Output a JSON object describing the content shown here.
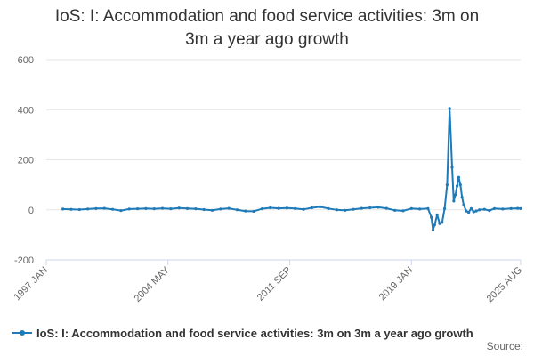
{
  "chart_data": {
    "type": "line",
    "title_line1": "IoS: I: Accommodation and food service activities: 3m on",
    "title_line2": "3m a year ago growth",
    "xlabel": "",
    "ylabel": "",
    "ylim": [
      -200,
      600
    ],
    "y_ticks": [
      "600",
      "400",
      "200",
      "0",
      "-200"
    ],
    "x_ticks": [
      {
        "label": "1997 JAN",
        "t": 1997.0
      },
      {
        "label": "2004 MAY",
        "t": 2004.33
      },
      {
        "label": "2011 SEP",
        "t": 2011.67
      },
      {
        "label": "2019 JAN",
        "t": 2019.0
      },
      {
        "label": "2025 AUG",
        "t": 2025.58
      }
    ],
    "xlim": [
      1997.0,
      2025.58
    ],
    "grid": true,
    "color": "#1f7ab8",
    "series": [
      {
        "name": "IoS: I: Accommodation and food service activities: 3m on 3m a year ago growth",
        "x": [
          1998.0,
          1998.5,
          1999.0,
          1999.5,
          2000.0,
          2000.5,
          2001.0,
          2001.5,
          2002.0,
          2002.5,
          2003.0,
          2003.5,
          2004.0,
          2004.5,
          2005.0,
          2005.5,
          2006.0,
          2006.5,
          2007.0,
          2007.5,
          2008.0,
          2008.5,
          2009.0,
          2009.5,
          2010.0,
          2010.5,
          2011.0,
          2011.5,
          2012.0,
          2012.5,
          2013.0,
          2013.5,
          2014.0,
          2014.5,
          2015.0,
          2015.5,
          2016.0,
          2016.5,
          2017.0,
          2017.5,
          2018.0,
          2018.5,
          2019.0,
          2019.5,
          2020.0,
          2020.2,
          2020.3,
          2020.4,
          2020.55,
          2020.7,
          2020.85,
          2021.0,
          2021.15,
          2021.3,
          2021.45,
          2021.55,
          2021.65,
          2021.75,
          2021.85,
          2021.95,
          2022.05,
          2022.15,
          2022.3,
          2022.45,
          2022.6,
          2022.75,
          2022.9,
          2023.1,
          2023.4,
          2023.7,
          2024.0,
          2024.5,
          2025.0,
          2025.4,
          2025.58
        ],
        "values": [
          3,
          2,
          1,
          3,
          5,
          6,
          2,
          -3,
          3,
          4,
          5,
          4,
          6,
          4,
          7,
          5,
          4,
          1,
          -2,
          3,
          6,
          0,
          -5,
          -6,
          4,
          8,
          6,
          7,
          5,
          2,
          8,
          12,
          5,
          0,
          -2,
          2,
          6,
          8,
          10,
          6,
          -2,
          -4,
          5,
          3,
          5,
          -30,
          -80,
          -60,
          -20,
          -55,
          -50,
          5,
          100,
          405,
          170,
          35,
          60,
          95,
          130,
          100,
          50,
          20,
          -5,
          -10,
          5,
          -8,
          -5,
          0,
          2,
          -3,
          5,
          3,
          5,
          6,
          5
        ]
      }
    ]
  },
  "legend": {
    "label": "IoS: I: Accommodation and food service activities: 3m on 3m a year ago growth"
  },
  "source": {
    "label": "Source:"
  }
}
